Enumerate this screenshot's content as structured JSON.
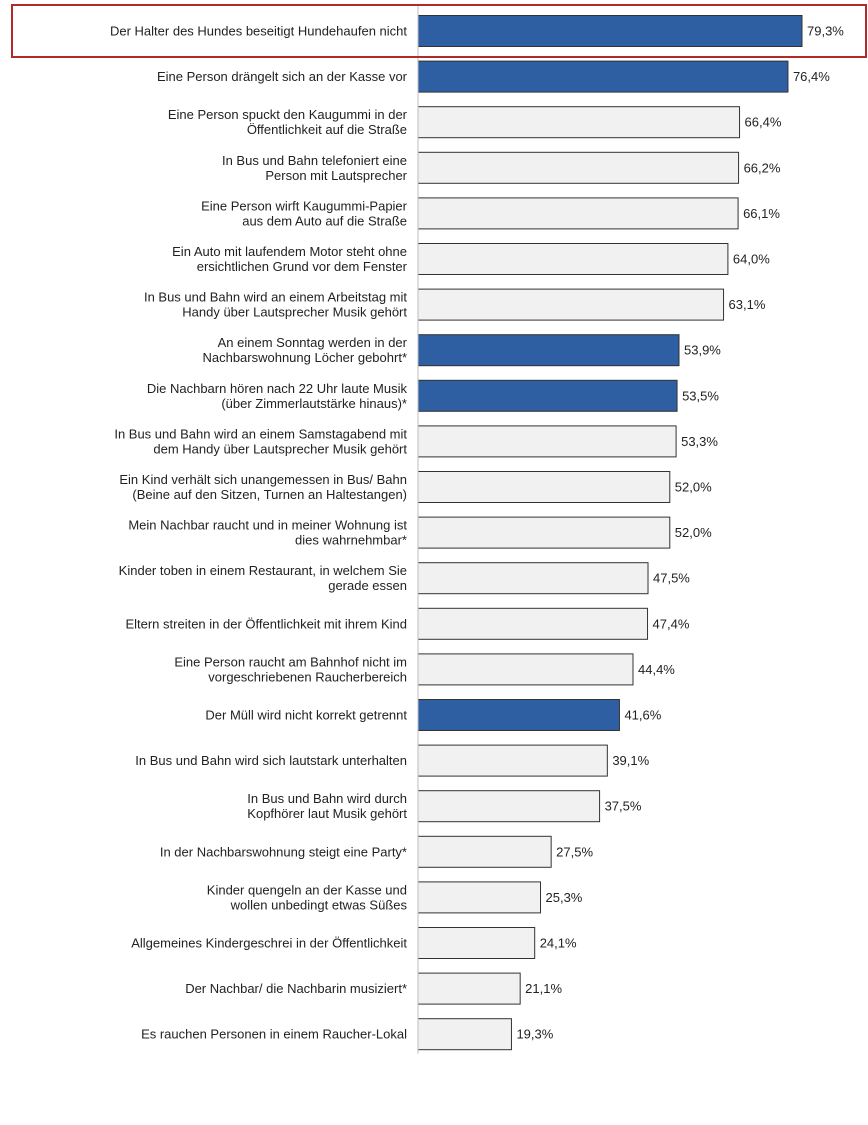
{
  "chart_data": {
    "type": "bar",
    "orientation": "horizontal",
    "xlim": [
      0,
      79.3
    ],
    "unit": "%",
    "grid": false,
    "categories": [
      "Der Halter des Hundes beseitigt Hundehaufen nicht",
      "Eine Person drängelt sich an der Kasse vor",
      "Eine Person spuckt den Kaugummi in der\nÖffentlichkeit auf die Straße",
      "In Bus und Bahn telefoniert eine\nPerson mit Lautsprecher",
      "Eine Person wirft Kaugummi-Papier\naus dem Auto auf die Straße",
      "Ein Auto mit laufendem Motor steht ohne\nersichtlichen Grund vor dem Fenster",
      "In Bus und Bahn wird an einem Arbeitstag mit\nHandy über Lautsprecher Musik gehört",
      "An einem Sonntag werden in der\nNachbarswohnung Löcher gebohrt*",
      "Die Nachbarn hören nach 22 Uhr laute Musik\n(über Zimmerlautstärke hinaus)*",
      "In Bus und Bahn wird an einem Samstagabend mit\ndem Handy über Lautsprecher Musik gehört",
      "Ein Kind verhält sich unangemessen in Bus/ Bahn\n(Beine auf den Sitzen, Turnen an Haltestangen)",
      "Mein Nachbar raucht und in meiner Wohnung ist\ndies wahrnehmbar*",
      "Kinder toben in einem Restaurant, in welchem Sie\ngerade essen",
      "Eltern streiten in der Öffentlichkeit mit ihrem Kind",
      "Eine Person raucht am Bahnhof nicht im\nvorgeschriebenen Raucherbereich",
      "Der Müll wird nicht korrekt getrennt",
      "In Bus und Bahn wird sich lautstark unterhalten",
      "In Bus und Bahn wird durch\nKopfhörer laut Musik gehört",
      "In der Nachbarswohnung steigt eine Party*",
      "Kinder quengeln an der Kasse und\nwollen unbedingt etwas Süßes",
      "Allgemeines Kindergeschrei in der Öffentlichkeit",
      "Der Nachbar/ die Nachbarin musiziert*",
      "Es rauchen Personen in einem Raucher-Lokal"
    ],
    "values": [
      79.3,
      76.4,
      66.4,
      66.2,
      66.1,
      64.0,
      63.1,
      53.9,
      53.5,
      53.3,
      52.0,
      52.0,
      47.5,
      47.4,
      44.4,
      41.6,
      39.1,
      37.5,
      27.5,
      25.3,
      24.1,
      21.1,
      19.3
    ],
    "value_labels": [
      "79,3%",
      "76,4%",
      "66,4%",
      "66,2%",
      "66,1%",
      "64,0%",
      "63,1%",
      "53,9%",
      "53,5%",
      "53,3%",
      "52,0%",
      "52,0%",
      "47,5%",
      "47,4%",
      "44,4%",
      "41,6%",
      "39,1%",
      "37,5%",
      "27,5%",
      "25,3%",
      "24,1%",
      "21,1%",
      "19,3%"
    ],
    "highlighted": [
      true,
      true,
      false,
      false,
      false,
      false,
      false,
      true,
      true,
      false,
      false,
      false,
      false,
      false,
      false,
      true,
      false,
      false,
      false,
      false,
      false,
      false,
      false
    ],
    "highlight_box_index": 0,
    "colors": {
      "highlight_fill": "#2e5fa3",
      "default_fill": "#f1f1f1",
      "bar_stroke": "#333333",
      "box_stroke": "#b02a2a"
    }
  }
}
